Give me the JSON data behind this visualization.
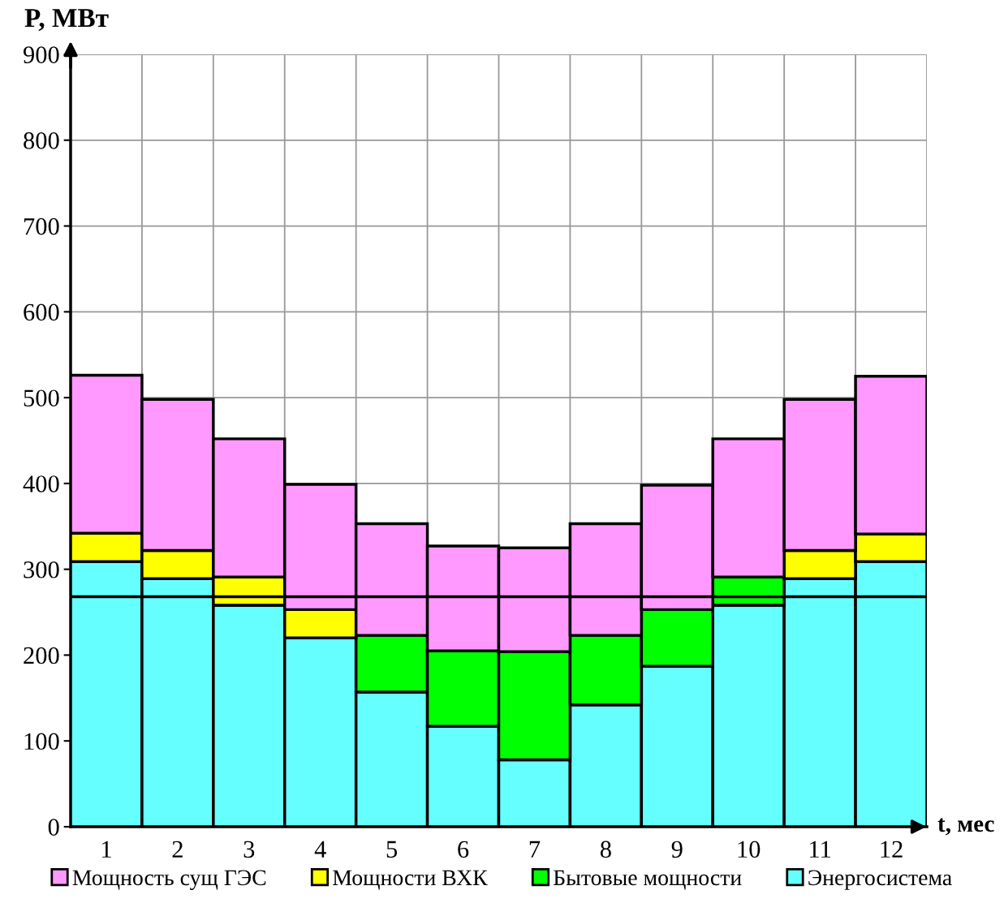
{
  "chart_data": {
    "type": "bar",
    "stacked": true,
    "xlabel": "t, мес",
    "ylabel": "P, МВт",
    "categories": [
      "1",
      "2",
      "3",
      "4",
      "5",
      "6",
      "7",
      "8",
      "9",
      "10",
      "11",
      "12"
    ],
    "series": [
      {
        "name": "Энергосистема",
        "color": "#66ffff",
        "values": [
          309,
          289,
          258,
          220,
          157,
          117,
          78,
          142,
          187,
          258,
          289,
          309
        ]
      },
      {
        "name": "Бытовые мощности",
        "color": "#00ff00",
        "values": [
          null,
          null,
          null,
          null,
          66,
          88,
          126,
          81,
          66,
          33,
          null,
          null
        ]
      },
      {
        "name": "Мощности ВХК",
        "color": "#ffff00",
        "values": [
          33,
          33,
          33,
          33,
          null,
          null,
          null,
          null,
          null,
          null,
          33,
          32
        ]
      },
      {
        "name": "Мощность сущ ГЭС",
        "color": "#ff99ff",
        "values": [
          184,
          176,
          161,
          146,
          130,
          122,
          121,
          130,
          145,
          161,
          176,
          184
        ]
      }
    ],
    "ylim": [
      0,
      900
    ],
    "yticks": [
      0,
      100,
      200,
      300,
      400,
      500,
      600,
      700,
      800,
      900
    ],
    "ref_lines": [
      {
        "axis": "y",
        "value": 268,
        "color": "#000000"
      }
    ],
    "grid": true,
    "legend": "bottom"
  }
}
